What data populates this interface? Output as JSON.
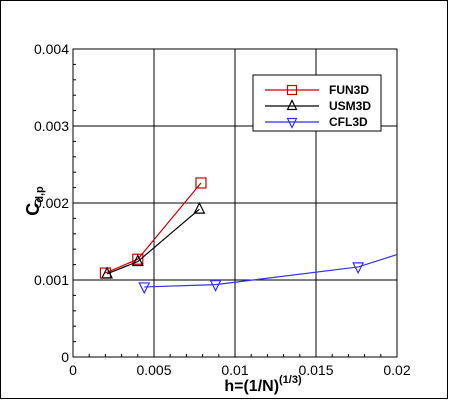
{
  "chart_data": {
    "type": "line",
    "xlabel": "h=(1/N)",
    "xlabel_superscript": "(1/3)",
    "ylabel": "C",
    "ylabel_subscript": "d,p",
    "xlim": [
      0,
      0.02
    ],
    "ylim": [
      0,
      0.004
    ],
    "x_ticks": [
      {
        "value": 0,
        "label": "0"
      },
      {
        "value": 0.005,
        "label": "0.005"
      },
      {
        "value": 0.01,
        "label": "0.01"
      },
      {
        "value": 0.015,
        "label": "0.015"
      },
      {
        "value": 0.02,
        "label": "0.02"
      }
    ],
    "y_ticks": [
      {
        "value": 0,
        "label": "0"
      },
      {
        "value": 0.001,
        "label": "0.001"
      },
      {
        "value": 0.002,
        "label": "0.002"
      },
      {
        "value": 0.003,
        "label": "0.003"
      },
      {
        "value": 0.004,
        "label": "0.004"
      }
    ],
    "grid": true,
    "legend_position": "top-right",
    "series": [
      {
        "name": "FUN3D",
        "color": "#cc0000",
        "marker": "square",
        "x": [
          0.002,
          0.004,
          0.0079
        ],
        "y": [
          0.00109,
          0.00127,
          0.00226
        ]
      },
      {
        "name": "USM3D",
        "color": "#000000",
        "marker": "triangle-up",
        "x": [
          0.0021,
          0.004,
          0.0078
        ],
        "y": [
          0.00108,
          0.00124,
          0.00192
        ]
      },
      {
        "name": "CFL3D",
        "color": "#3333dd",
        "marker": "triangle-down",
        "x": [
          0.0044,
          0.0088,
          0.0176,
          0.02
        ],
        "y": [
          0.00091,
          0.00094,
          0.00117,
          0.00133
        ],
        "marker_points": 3
      }
    ]
  }
}
